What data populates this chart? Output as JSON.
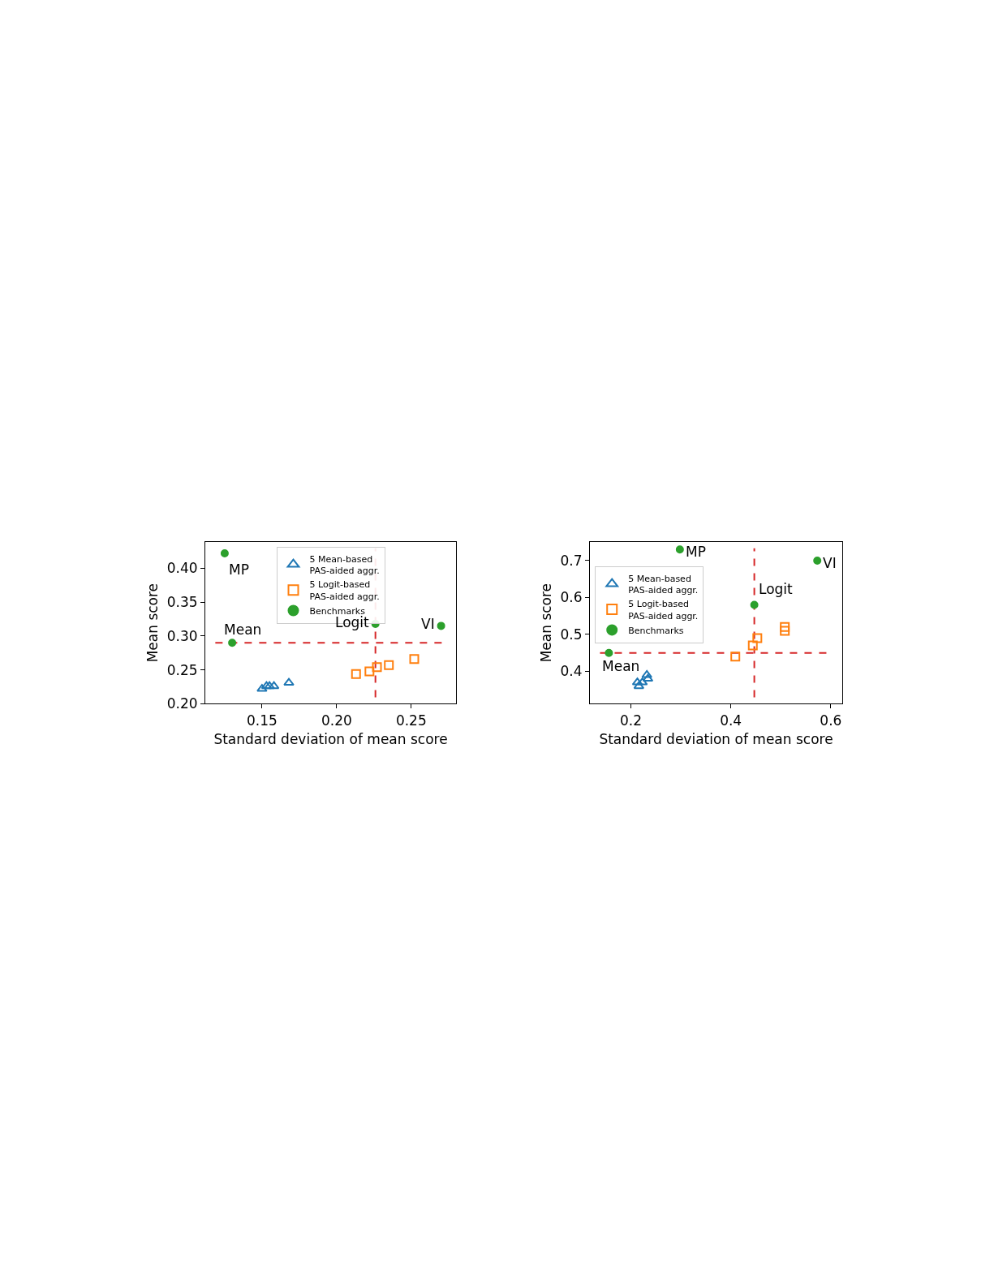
{
  "chart_data": [
    {
      "type": "scatter",
      "xlabel": "Standard deviation of mean score",
      "ylabel": "Mean score",
      "xlim": [
        0.112,
        0.28
      ],
      "ylim": [
        0.2,
        0.439
      ],
      "xticks": [
        {
          "value": 0.15,
          "label": "0.15"
        },
        {
          "value": 0.2,
          "label": "0.20"
        },
        {
          "value": 0.25,
          "label": "0.25"
        }
      ],
      "yticks": [
        {
          "value": 0.2,
          "label": "0.20"
        },
        {
          "value": 0.25,
          "label": "0.25"
        },
        {
          "value": 0.3,
          "label": "0.30"
        },
        {
          "value": 0.35,
          "label": "0.35"
        },
        {
          "value": 0.4,
          "label": "0.40"
        }
      ],
      "legend": "top",
      "series": [
        {
          "name": "5 Mean-based\nPAS-aided aggr.",
          "color": "#1f77b4",
          "marker": "triangle",
          "x": [
            0.15,
            0.153,
            0.155,
            0.158,
            0.168
          ],
          "values": [
            0.222,
            0.226,
            0.226,
            0.226,
            0.231
          ]
        },
        {
          "name": "5 Logit-based\nPAS-aided aggr.",
          "color": "#ff7f0e",
          "marker": "square",
          "x": [
            0.213,
            0.222,
            0.227,
            0.235,
            0.252
          ],
          "values": [
            0.244,
            0.248,
            0.254,
            0.257,
            0.266
          ]
        },
        {
          "name": "Benchmarks",
          "color": "#2ca02c",
          "marker": "circle",
          "x": [
            0.125,
            0.13,
            0.226,
            0.27
          ],
          "values": [
            0.422,
            0.29,
            0.318,
            0.315
          ]
        }
      ],
      "ref_lines": [
        {
          "axis": "x",
          "value": 0.226,
          "color": "#d62728",
          "line_style": "dashed"
        },
        {
          "axis": "y",
          "value": 0.29,
          "color": "#d62728",
          "line_style": "dashed"
        }
      ],
      "annotations": [
        {
          "text": "MP",
          "x": 0.125,
          "y": 0.422
        },
        {
          "text": "Mean",
          "x": 0.13,
          "y": 0.29
        },
        {
          "text": "Logit",
          "x": 0.226,
          "y": 0.318
        },
        {
          "text": "VI",
          "x": 0.27,
          "y": 0.315
        }
      ]
    },
    {
      "type": "scatter",
      "xlabel": "Standard deviation of mean score",
      "ylabel": "Mean score",
      "xlim": [
        0.118,
        0.623
      ],
      "ylim": [
        0.312,
        0.751
      ],
      "xticks": [
        0.2,
        0.4,
        0.6
      ],
      "yticks": [
        0.4,
        0.5,
        0.6,
        0.7
      ],
      "legend": "top left",
      "series": [
        {
          "name": "5 Mean-based\nPAS-aided aggr.",
          "color": "#1f77b4",
          "marker": "triangle",
          "x": [
            0.213,
            0.216,
            0.223,
            0.232,
            0.234
          ],
          "values": [
            0.37,
            0.36,
            0.37,
            0.39,
            0.38
          ]
        },
        {
          "name": "5 Logit-based\nPAS-aided aggr.",
          "color": "#ff7f0e",
          "marker": "square",
          "x": [
            0.409,
            0.444,
            0.453,
            0.508,
            0.508
          ],
          "values": [
            0.44,
            0.47,
            0.49,
            0.52,
            0.51
          ]
        },
        {
          "name": "Benchmarks",
          "color": "#2ca02c",
          "marker": "circle",
          "x": [
            0.298,
            0.573,
            0.447,
            0.156
          ],
          "values": [
            0.73,
            0.7,
            0.58,
            0.45
          ]
        }
      ],
      "ref_lines": [
        {
          "axis": "x",
          "value": 0.447,
          "color": "#d62728",
          "line_style": "dashed"
        },
        {
          "axis": "y",
          "value": 0.45,
          "color": "#d62728",
          "line_style": "dashed"
        }
      ],
      "annotations": [
        {
          "text": "MP",
          "x": 0.298,
          "y": 0.73
        },
        {
          "text": "VI",
          "x": 0.573,
          "y": 0.7
        },
        {
          "text": "Logit",
          "x": 0.447,
          "y": 0.58
        },
        {
          "text": "Mean",
          "x": 0.156,
          "y": 0.45
        }
      ]
    }
  ]
}
